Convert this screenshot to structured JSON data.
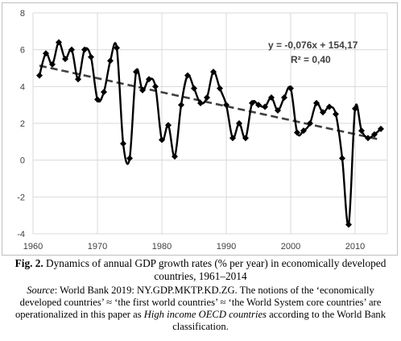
{
  "chart_data": {
    "type": "line",
    "x": [
      1961,
      1962,
      1963,
      1964,
      1965,
      1966,
      1967,
      1968,
      1969,
      1970,
      1971,
      1972,
      1973,
      1974,
      1975,
      1976,
      1977,
      1978,
      1979,
      1980,
      1981,
      1982,
      1983,
      1984,
      1985,
      1986,
      1987,
      1988,
      1989,
      1990,
      1991,
      1992,
      1993,
      1994,
      1995,
      1996,
      1997,
      1998,
      1999,
      2000,
      2001,
      2002,
      2003,
      2004,
      2005,
      2006,
      2007,
      2008,
      2009,
      2010,
      2011,
      2012,
      2013,
      2014
    ],
    "series": [
      {
        "values": [
          4.6,
          5.8,
          5.2,
          6.4,
          5.5,
          6.0,
          4.4,
          6.0,
          5.6,
          3.3,
          3.7,
          5.4,
          6.1,
          0.9,
          0.1,
          4.8,
          3.8,
          4.4,
          4.0,
          1.1,
          1.9,
          0.2,
          3.0,
          4.6,
          3.9,
          3.1,
          3.4,
          4.8,
          3.9,
          3.0,
          1.2,
          2.0,
          1.2,
          3.1,
          3.0,
          2.9,
          3.4,
          2.7,
          3.4,
          3.9,
          1.5,
          1.6,
          2.0,
          3.1,
          2.6,
          2.9,
          2.5,
          0.1,
          -3.5,
          2.8,
          1.6,
          1.2,
          1.4,
          1.7
        ],
        "color": "#000000",
        "marker": "diamond"
      }
    ],
    "trendline": {
      "slope": -0.076,
      "intercept": 154.17,
      "style": "dashed",
      "color": "#404040"
    },
    "annotation": {
      "equation": "y = -0,076x + 154,17",
      "r2": "R² = 0,40"
    },
    "x_ticks": [
      "1960",
      "1970",
      "1980",
      "1990",
      "2000",
      "2010"
    ],
    "y_ticks": [
      "-4",
      "-2",
      "0",
      "2",
      "4",
      "6",
      "8"
    ],
    "xlim": [
      1960,
      2015
    ],
    "ylim": [
      -4,
      8
    ],
    "grid": true
  },
  "caption": {
    "fig_label": "Fig. 2.",
    "text": " Dynamics of annual GDP growth rates (% per year) in economically developed countries, 1961–2014"
  },
  "source": {
    "label": "Source",
    "text_1": ": World Bank 2019: NY.GDP.MKTP.KD.ZG. The notions of the ‘economically developed countries’ ≈ ‘the first world countries’ ≈ ‘the World System core countries’ are operationalized in this paper as ",
    "italic": "High income OECD countries",
    "text_2": " according to the World Bank classification."
  }
}
